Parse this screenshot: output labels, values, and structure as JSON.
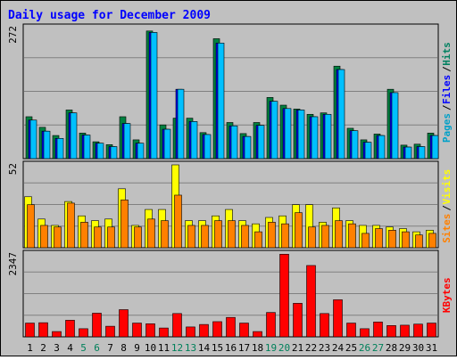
{
  "chart_data": {
    "type": "bar",
    "title": "Daily usage for December 2009",
    "categories": [
      "1",
      "2",
      "3",
      "4",
      "5",
      "6",
      "7",
      "8",
      "9",
      "10",
      "11",
      "12",
      "13",
      "14",
      "15",
      "16",
      "17",
      "18",
      "19",
      "20",
      "21",
      "22",
      "23",
      "24",
      "25",
      "26",
      "27",
      "28",
      "29",
      "30",
      "31"
    ],
    "weekend_days": [
      "5",
      "6",
      "12",
      "13",
      "19",
      "20",
      "26",
      "27"
    ],
    "panels": [
      {
        "id": "hits",
        "ymax": 272,
        "legend": [
          {
            "text": "Pages",
            "color": "#00a0c8"
          },
          {
            "text": "Files",
            "color": "#0000ff"
          },
          {
            "text": "Hits",
            "color": "#008060"
          }
        ],
        "series": [
          {
            "name": "Hits",
            "color": "#008040",
            "values": [
              87,
              65,
              48,
              101,
              53,
              35,
              29,
              87,
              39,
              265,
              70,
              84,
              84,
              54,
              249,
              75,
              52,
              75,
              127,
              111,
              103,
              92,
              95,
              192,
              63,
              39,
              51,
              144,
              28,
              30,
              53
            ]
          },
          {
            "name": "Files",
            "color": "#0000ff",
            "values": [
              80,
              57,
              42,
              95,
              49,
              32,
              25,
              73,
              32,
              262,
              61,
              144,
              77,
              50,
              240,
              68,
              46,
              69,
              119,
              104,
              101,
              87,
              92,
              185,
              58,
              34,
              48,
              137,
              24,
              25,
              48
            ]
          },
          {
            "name": "Pages",
            "color": "#00c0ff",
            "values": [
              80,
              57,
              42,
              95,
              49,
              32,
              25,
              73,
              32,
              262,
              61,
              144,
              77,
              50,
              240,
              68,
              46,
              69,
              119,
              104,
              101,
              87,
              92,
              185,
              58,
              34,
              48,
              137,
              24,
              25,
              48
            ]
          }
        ]
      },
      {
        "id": "visits",
        "ymax": 52,
        "legend": [
          {
            "text": "Sites",
            "color": "#ff8000"
          },
          {
            "text": "Visits",
            "color": "#ffff00"
          }
        ],
        "series": [
          {
            "name": "Visits",
            "color": "#ffff00",
            "values": [
              32,
              18,
              14,
              29,
              20,
              17,
              18,
              37,
              14,
              24,
              24,
              52,
              17,
              17,
              20,
              24,
              17,
              15,
              19,
              20,
              27,
              27,
              16,
              25,
              17,
              14,
              14,
              13,
              12,
              10,
              11
            ]
          },
          {
            "name": "Sites",
            "color": "#ff8000",
            "values": [
              27,
              14,
              13,
              28,
              16,
              13,
              13,
              30,
              13,
              18,
              17,
              33,
              14,
              14,
              17,
              17,
              14,
              10,
              16,
              15,
              22,
              13,
              14,
              17,
              15,
              9,
              12,
              11,
              10,
              8,
              9
            ]
          }
        ]
      },
      {
        "id": "kbytes",
        "ymax": 2347,
        "legend": [
          {
            "text": "KBytes",
            "color": "#ff0000"
          }
        ],
        "series": [
          {
            "name": "KBytes",
            "color": "#ff0000",
            "values": [
              390,
              400,
              150,
              470,
              230,
              670,
              300,
              770,
              390,
              370,
              250,
              660,
              280,
              350,
              430,
              550,
              390,
              150,
              690,
              2340,
              950,
              2020,
              660,
              1050,
              390,
              230,
              420,
              320,
              330,
              360,
              390
            ]
          }
        ]
      }
    ]
  }
}
